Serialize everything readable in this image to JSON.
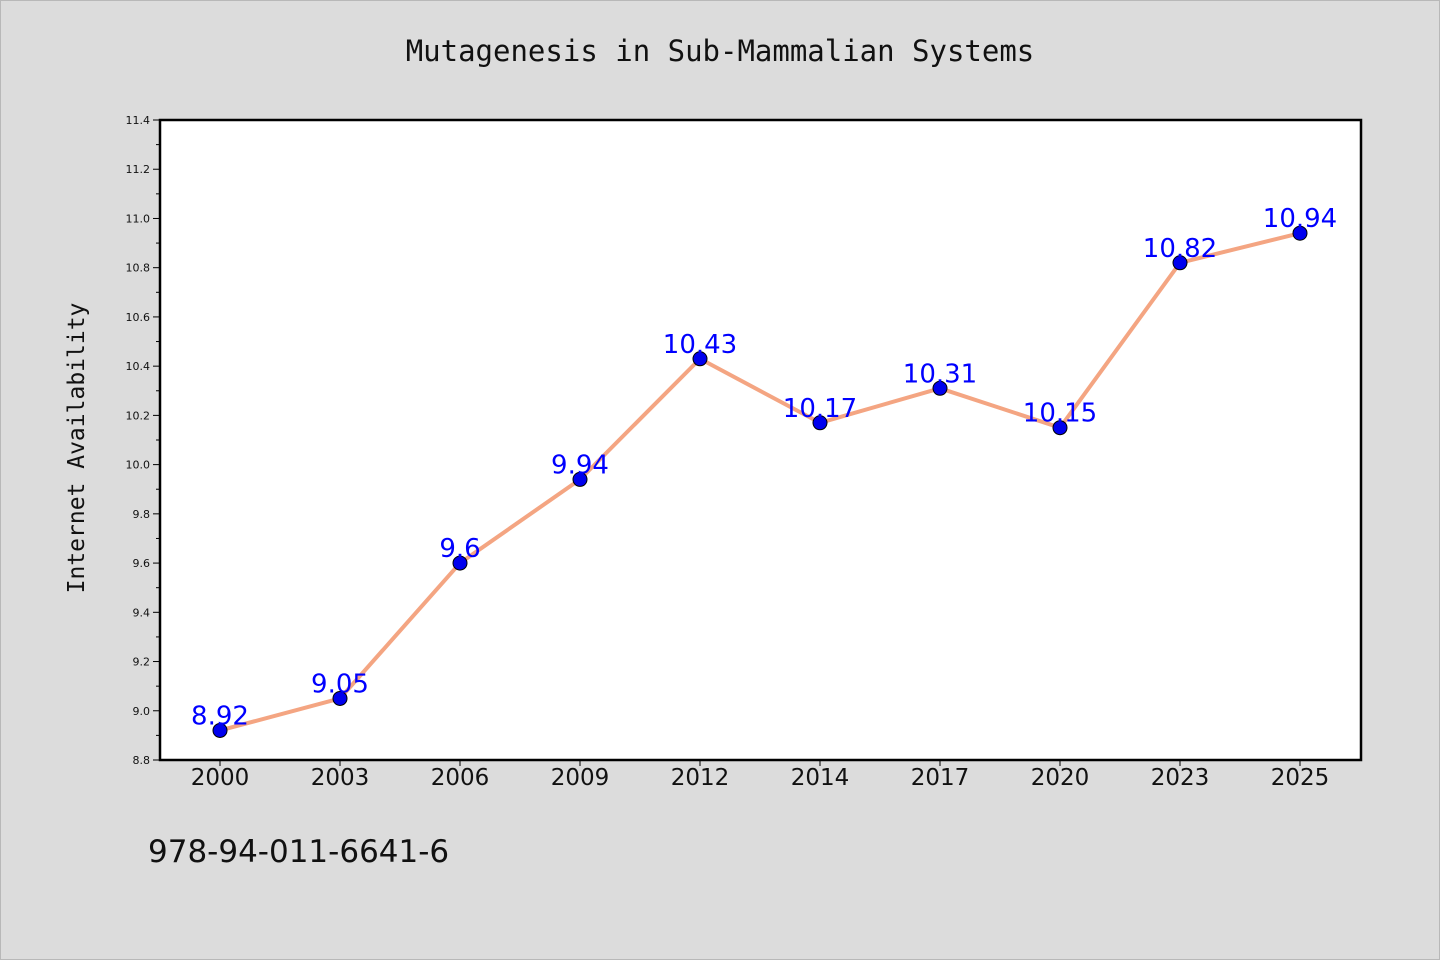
{
  "chart_data": {
    "type": "line",
    "title": "Mutagenesis in Sub-Mammalian Systems",
    "xlabel": "",
    "ylabel": "Internet Availability",
    "categories": [
      "2000",
      "2003",
      "2006",
      "2009",
      "2012",
      "2014",
      "2017",
      "2020",
      "2023",
      "2025"
    ],
    "series": [
      {
        "values": [
          8.92,
          9.05,
          9.6,
          9.94,
          10.43,
          10.17,
          10.31,
          10.15,
          10.82,
          10.94
        ],
        "line_color": "#f4a582",
        "marker_color": "#0000ee",
        "label_color": "#0000ff"
      }
    ],
    "ylim": [
      8.8,
      11.4
    ],
    "yticks": [
      "8.8",
      "9.0",
      "9.2",
      "9.4",
      "9.6",
      "9.8",
      "10.0",
      "10.2",
      "10.4",
      "10.6",
      "10.8",
      "11.0",
      "11.2",
      "11.4"
    ],
    "grid": false,
    "legend": "none",
    "background": "#dcdcdc",
    "plot_background": "#ffffff"
  },
  "footer": {
    "code": "978-94-011-6641-6"
  }
}
